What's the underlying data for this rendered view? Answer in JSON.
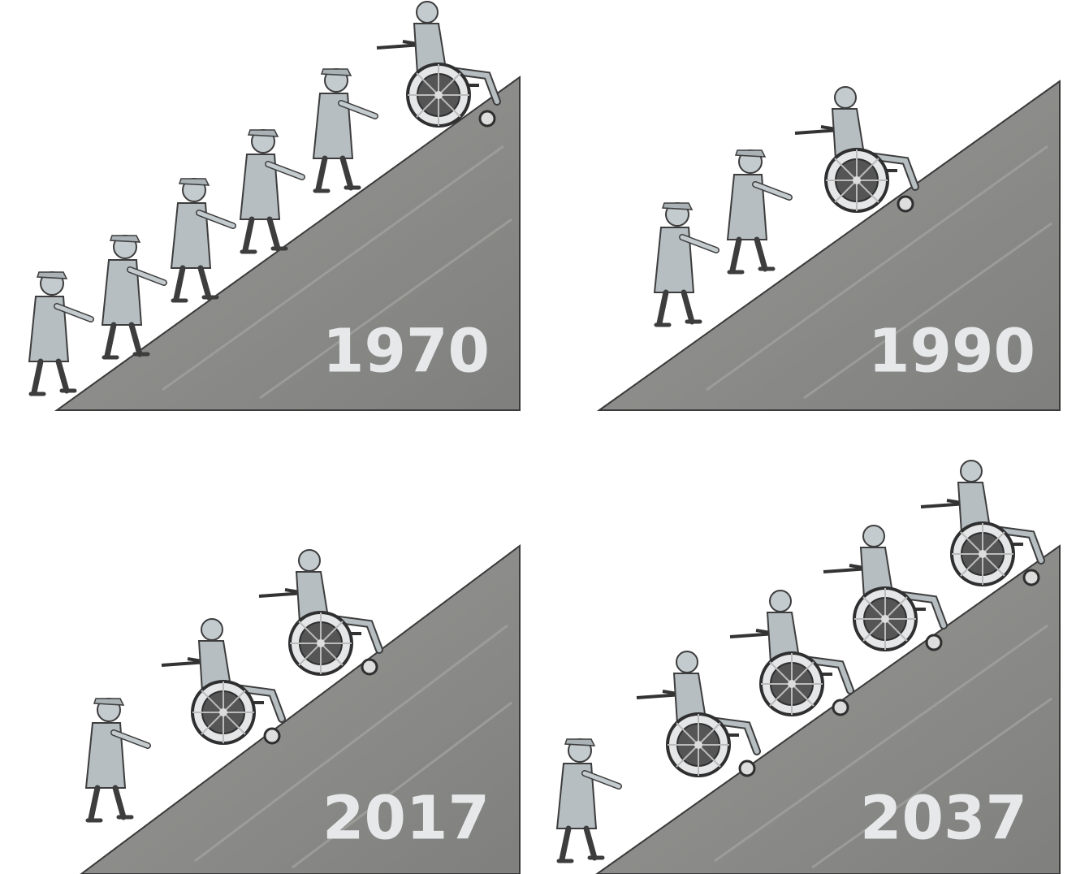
{
  "panels": [
    {
      "year": "1970"
    },
    {
      "year": "1990"
    },
    {
      "year": "2017"
    },
    {
      "year": "2037"
    }
  ]
}
